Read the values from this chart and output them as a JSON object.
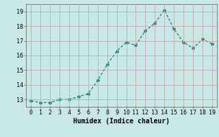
{
  "x": [
    0,
    1,
    2,
    3,
    4,
    5,
    6,
    7,
    8,
    9,
    10,
    11,
    12,
    13,
    14,
    15,
    16,
    17,
    18,
    19
  ],
  "y": [
    12.9,
    12.8,
    12.8,
    13.0,
    13.0,
    13.2,
    13.4,
    14.3,
    15.4,
    16.3,
    16.9,
    16.7,
    17.7,
    18.2,
    19.1,
    17.8,
    16.9,
    16.5,
    17.1,
    16.8
  ],
  "line_color": "#1a7a6e",
  "marker_color": "#1a7a6e",
  "bg_color": "#c8e8e8",
  "grid_color": "#c0a8a8",
  "xlabel": "Humidex (Indice chaleur)",
  "xlim": [
    -0.5,
    19.5
  ],
  "ylim": [
    12.5,
    19.5
  ],
  "yticks": [
    13,
    14,
    15,
    16,
    17,
    18,
    19
  ],
  "xticks": [
    0,
    1,
    2,
    3,
    4,
    5,
    6,
    7,
    8,
    9,
    10,
    11,
    12,
    13,
    14,
    15,
    16,
    17,
    18,
    19
  ],
  "tick_fontsize": 6,
  "xlabel_fontsize": 7
}
